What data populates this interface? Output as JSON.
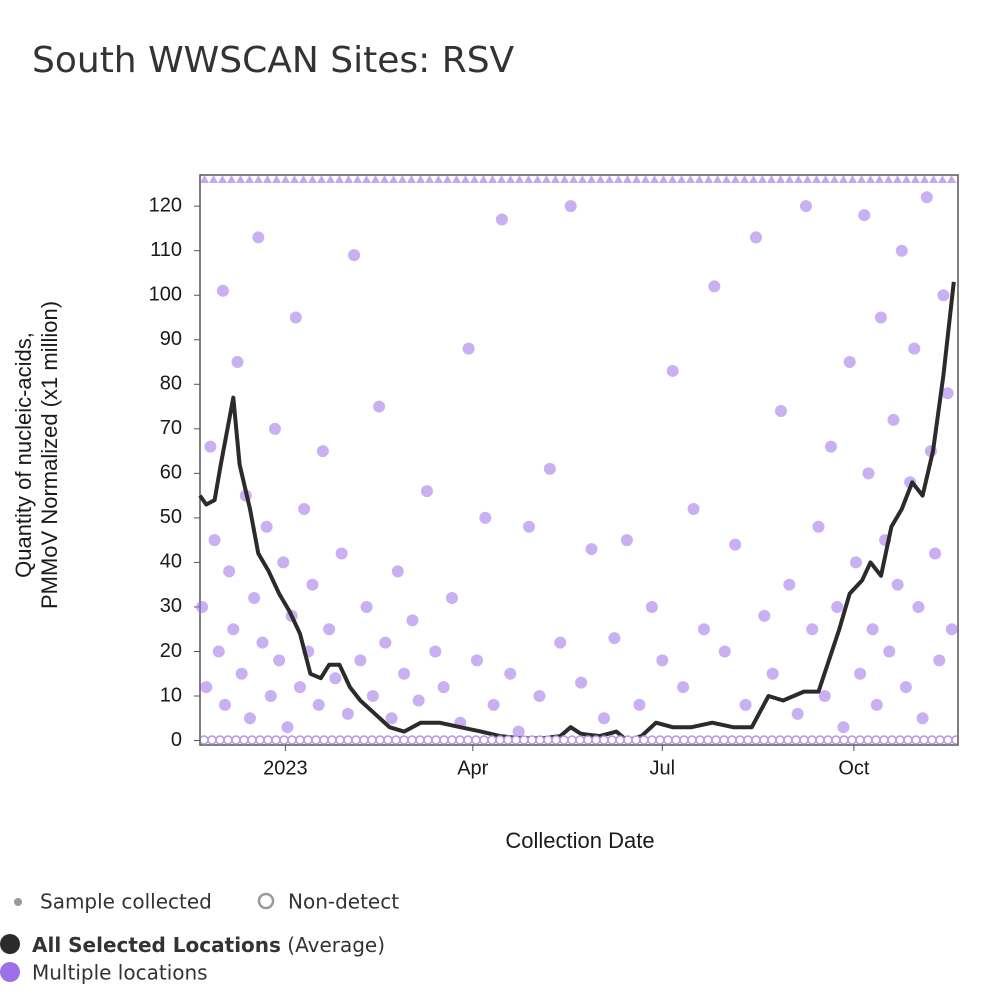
{
  "chart_data": {
    "type": "scatter-line",
    "title": "South WWSCAN Sites: RSV",
    "x_label": "Collection Date",
    "y_label": [
      "Quantity of nucleic-acids,",
      "PMMoV Normalized (x1 million)"
    ],
    "xlim": [
      "2022-11-21",
      "2023-11-20"
    ],
    "xticks": [
      {
        "value": "2023-01-01",
        "label": "2023"
      },
      {
        "value": "2023-04-01",
        "label": "Apr"
      },
      {
        "value": "2023-07-01",
        "label": "Jul"
      },
      {
        "value": "2023-10-01",
        "label": "Oct"
      }
    ],
    "ylim": [
      -1,
      127
    ],
    "yticks": [
      0,
      10,
      20,
      30,
      40,
      50,
      60,
      70,
      80,
      90,
      100,
      110,
      120
    ],
    "legend_markers": [
      "Sample collected",
      "Non-detect"
    ],
    "legend_note": "(Average)",
    "series": [
      {
        "name": "Multiple locations",
        "kind": "scatter",
        "color": "#9d6fe8",
        "x": [
          "2022-11-22",
          "2022-11-24",
          "2022-11-26",
          "2022-11-28",
          "2022-11-30",
          "2022-12-02",
          "2022-12-03",
          "2022-12-05",
          "2022-12-07",
          "2022-12-09",
          "2022-12-11",
          "2022-12-13",
          "2022-12-15",
          "2022-12-17",
          "2022-12-19",
          "2022-12-21",
          "2022-12-23",
          "2022-12-25",
          "2022-12-27",
          "2022-12-29",
          "2022-12-31",
          "2023-01-02",
          "2023-01-04",
          "2023-01-06",
          "2023-01-08",
          "2023-01-10",
          "2023-01-12",
          "2023-01-14",
          "2023-01-17",
          "2023-01-19",
          "2023-01-22",
          "2023-01-25",
          "2023-01-28",
          "2023-01-31",
          "2023-02-03",
          "2023-02-06",
          "2023-02-09",
          "2023-02-12",
          "2023-02-15",
          "2023-02-18",
          "2023-02-21",
          "2023-02-24",
          "2023-02-27",
          "2023-03-03",
          "2023-03-06",
          "2023-03-10",
          "2023-03-14",
          "2023-03-18",
          "2023-03-22",
          "2023-03-26",
          "2023-03-30",
          "2023-04-03",
          "2023-04-07",
          "2023-04-11",
          "2023-04-15",
          "2023-04-19",
          "2023-04-23",
          "2023-04-28",
          "2023-05-03",
          "2023-05-08",
          "2023-05-13",
          "2023-05-18",
          "2023-05-23",
          "2023-05-28",
          "2023-06-03",
          "2023-06-08",
          "2023-06-14",
          "2023-06-20",
          "2023-06-26",
          "2023-07-01",
          "2023-07-06",
          "2023-07-11",
          "2023-07-16",
          "2023-07-21",
          "2023-07-26",
          "2023-07-31",
          "2023-08-05",
          "2023-08-10",
          "2023-08-15",
          "2023-08-19",
          "2023-08-23",
          "2023-08-27",
          "2023-08-31",
          "2023-09-04",
          "2023-09-08",
          "2023-09-11",
          "2023-09-14",
          "2023-09-17",
          "2023-09-20",
          "2023-09-23",
          "2023-09-26",
          "2023-09-29",
          "2023-10-02",
          "2023-10-04",
          "2023-10-06",
          "2023-10-08",
          "2023-10-10",
          "2023-10-12",
          "2023-10-14",
          "2023-10-16",
          "2023-10-18",
          "2023-10-20",
          "2023-10-22",
          "2023-10-24",
          "2023-10-26",
          "2023-10-28",
          "2023-10-30",
          "2023-11-01",
          "2023-11-03",
          "2023-11-05",
          "2023-11-07",
          "2023-11-09",
          "2023-11-11",
          "2023-11-13",
          "2023-11-15",
          "2023-11-17"
        ],
        "values": [
          30,
          12,
          66,
          45,
          20,
          101,
          8,
          38,
          25,
          85,
          15,
          55,
          5,
          32,
          113,
          22,
          48,
          10,
          70,
          18,
          40,
          3,
          28,
          95,
          12,
          52,
          20,
          35,
          8,
          65,
          25,
          14,
          42,
          6,
          109,
          18,
          30,
          10,
          75,
          22,
          5,
          38,
          15,
          27,
          9,
          56,
          20,
          12,
          32,
          4,
          88,
          18,
          50,
          8,
          117,
          15,
          2,
          48,
          10,
          61,
          22,
          120,
          13,
          43,
          5,
          23,
          45,
          8,
          30,
          18,
          83,
          12,
          52,
          25,
          102,
          20,
          44,
          8,
          113,
          28,
          15,
          74,
          35,
          6,
          120,
          25,
          48,
          10,
          66,
          30,
          3,
          85,
          40,
          15,
          118,
          60,
          25,
          8,
          95,
          45,
          20,
          72,
          35,
          110,
          12,
          58,
          88,
          30,
          5,
          122,
          65,
          42,
          18,
          100,
          78,
          25
        ]
      },
      {
        "name": "All Selected Locations",
        "kind": "line",
        "color": "#2b2b2b",
        "x": [
          "2022-11-21",
          "2022-11-24",
          "2022-11-28",
          "2022-12-01",
          "2022-12-07",
          "2022-12-10",
          "2022-12-15",
          "2022-12-19",
          "2022-12-24",
          "2022-12-29",
          "2023-01-03",
          "2023-01-08",
          "2023-01-13",
          "2023-01-18",
          "2023-01-22",
          "2023-01-27",
          "2023-02-01",
          "2023-02-06",
          "2023-02-13",
          "2023-02-20",
          "2023-02-27",
          "2023-03-07",
          "2023-03-16",
          "2023-03-26",
          "2023-04-05",
          "2023-04-14",
          "2023-04-24",
          "2023-05-04",
          "2023-05-13",
          "2023-05-18",
          "2023-05-23",
          "2023-06-01",
          "2023-06-09",
          "2023-06-14",
          "2023-06-21",
          "2023-06-28",
          "2023-07-06",
          "2023-07-15",
          "2023-07-25",
          "2023-08-04",
          "2023-08-13",
          "2023-08-21",
          "2023-08-28",
          "2023-09-07",
          "2023-09-14",
          "2023-09-19",
          "2023-09-24",
          "2023-09-29",
          "2023-10-05",
          "2023-10-09",
          "2023-10-14",
          "2023-10-19",
          "2023-10-24",
          "2023-10-29",
          "2023-11-03",
          "2023-11-08",
          "2023-11-13",
          "2023-11-18"
        ],
        "values": [
          55,
          53,
          54,
          62,
          77,
          62,
          52,
          42,
          38,
          33,
          29,
          24,
          15,
          14,
          17,
          17,
          12,
          9,
          6,
          3,
          2,
          4,
          4,
          3,
          2,
          1,
          0.5,
          0.5,
          1,
          3,
          1.5,
          1,
          2,
          0,
          1,
          4,
          3,
          3,
          4,
          3,
          3,
          10,
          9,
          11,
          11,
          18,
          25,
          33,
          36,
          40,
          37,
          48,
          52,
          58,
          55,
          65,
          82,
          103
        ]
      }
    ]
  }
}
